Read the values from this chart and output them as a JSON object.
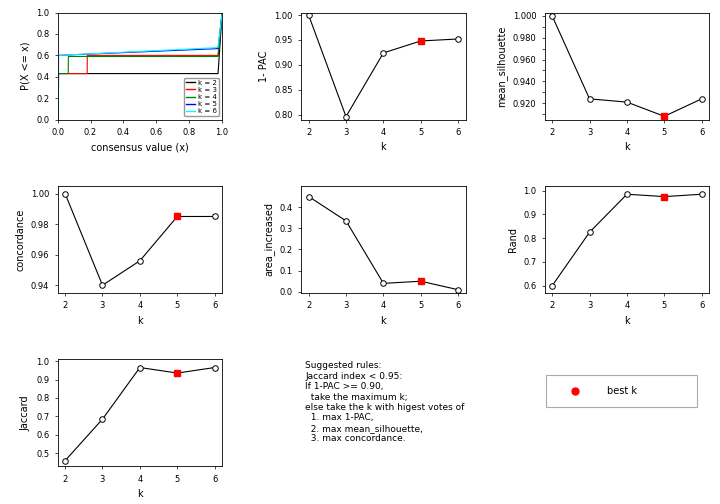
{
  "k_values": [
    2,
    3,
    4,
    5,
    6
  ],
  "pac_1minus": [
    1.0,
    0.796,
    0.924,
    0.948,
    0.952
  ],
  "pac_best_k": 5,
  "mean_silhouette": [
    1.0,
    0.924,
    0.921,
    0.908,
    0.924
  ],
  "sil_best_k": 5,
  "concordance": [
    1.0,
    0.94,
    0.956,
    0.985,
    0.985
  ],
  "conc_best_k": 5,
  "area_increased": [
    0.45,
    0.335,
    0.04,
    0.05,
    0.01
  ],
  "area_best_k": 5,
  "rand": [
    0.6,
    0.825,
    0.985,
    0.975,
    0.985
  ],
  "rand_best_k": 5,
  "jaccard": [
    0.46,
    0.685,
    0.965,
    0.935,
    0.965
  ],
  "jaccard_best_k": 5,
  "ecdf_colors": [
    "black",
    "red",
    "green",
    "blue",
    "cyan"
  ],
  "ecdf_k_labels": [
    "k = 2",
    "k = 3",
    "k = 4",
    "k = 5",
    "k = 6"
  ],
  "note_text": "Suggested rules:\nJaccard index < 0.95:\nIf 1-PAC >= 0.90,\n  take the maximum k;\nelse take the k with higest votes of\n  1. max 1-PAC,\n  2. max mean_silhouette,\n  3. max concordance.",
  "best_k_label": "best k"
}
